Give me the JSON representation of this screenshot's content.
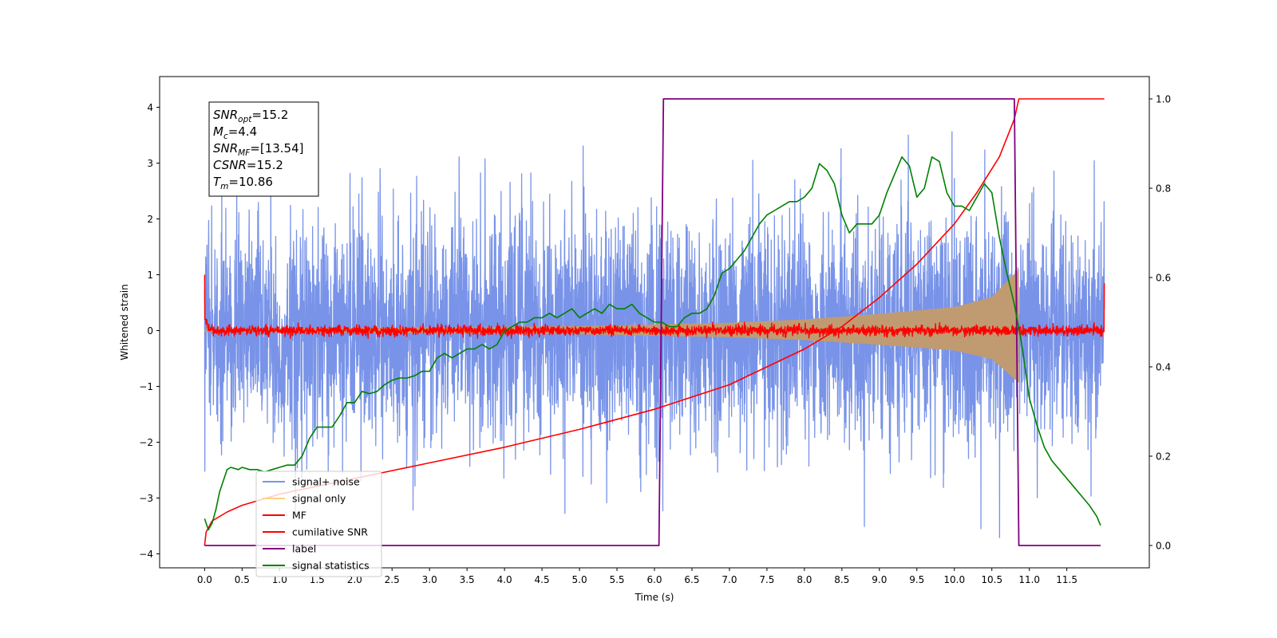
{
  "chart_data": {
    "type": "line",
    "title": "",
    "xlabel": "Time (s)",
    "ylabel": "Whitened strain",
    "ylabel_right": "",
    "xlim": [
      -0.6,
      12.6
    ],
    "ylim": [
      -4.25,
      4.55
    ],
    "ylim_right": [
      -0.05,
      1.05
    ],
    "x_ticks": [
      "0.0",
      "0.5",
      "1.0",
      "1.5",
      "2.0",
      "2.5",
      "3.0",
      "3.5",
      "4.0",
      "4.5",
      "5.0",
      "5.5",
      "6.0",
      "6.5",
      "7.0",
      "7.5",
      "8.0",
      "8.5",
      "9.0",
      "9.5",
      "10.0",
      "10.5",
      "11.0",
      "11.5"
    ],
    "y_ticks": [
      "4",
      "3",
      "2",
      "1",
      "0",
      "−1",
      "−2",
      "−3",
      "−4"
    ],
    "y_ticks_right": [
      "1.0",
      "0.8",
      "0.6",
      "0.4",
      "0.2",
      "0.0"
    ],
    "grid": false,
    "legend_position": "lower-left",
    "annotation": {
      "snr_opt": {
        "base": "SNR",
        "sub": "opt",
        "value": "=15.2"
      },
      "mc": {
        "base": "M",
        "sub": "c",
        "value": "=4.4"
      },
      "snr_mf": {
        "base": "SNR",
        "sub": "MF",
        "value": "=[13.54]"
      },
      "csnr": {
        "base": "CSNR",
        "value": "=15.2"
      },
      "tm": {
        "base": "T",
        "sub": "m",
        "value": "=10.86"
      }
    },
    "series": [
      {
        "name": "signal+ noise",
        "color": "#7893e8",
        "axis": "left",
        "x_range": [
          0.0,
          12.0
        ],
        "approx_envelope": [
          -3.8,
          4.2
        ]
      },
      {
        "name": "signal only",
        "color": "#ffd280",
        "fill_color": "#c09b72",
        "axis": "left",
        "x_range": [
          0.0,
          10.86
        ],
        "amplitude": {
          "x": [
            0.0,
            5.0,
            7.0,
            8.0,
            9.0,
            10.0,
            10.5,
            10.86
          ],
          "y": [
            0.03,
            0.08,
            0.14,
            0.2,
            0.3,
            0.42,
            0.6,
            1.1
          ]
        }
      },
      {
        "name": "MF",
        "color": "#ff0000",
        "axis": "left",
        "x_range": [
          0.0,
          12.0
        ],
        "approx_envelope": [
          -0.1,
          0.2
        ],
        "edge_values": {
          "start": 1.0,
          "end": 0.85
        }
      },
      {
        "name": "cumilative SNR",
        "color": "#ff0000",
        "axis": "right",
        "x": [
          0.0,
          0.02,
          0.1,
          0.3,
          0.5,
          1.0,
          2.0,
          3.0,
          4.0,
          5.0,
          6.0,
          7.0,
          8.0,
          8.5,
          9.0,
          9.5,
          10.0,
          10.3,
          10.6,
          10.8,
          10.86,
          12.0
        ],
        "y": [
          0.0,
          0.03,
          0.055,
          0.075,
          0.09,
          0.115,
          0.15,
          0.185,
          0.22,
          0.26,
          0.305,
          0.36,
          0.44,
          0.49,
          0.555,
          0.63,
          0.72,
          0.79,
          0.87,
          0.955,
          1.0,
          1.0
        ]
      },
      {
        "name": "label",
        "color": "#800080",
        "axis": "right",
        "x": [
          0.0,
          6.06,
          6.12,
          10.8,
          10.86,
          11.95
        ],
        "y": [
          0.0,
          0.0,
          1.0,
          1.0,
          0.0,
          0.0
        ]
      },
      {
        "name": "signal statistics",
        "color": "#008000",
        "axis": "right",
        "x": [
          0.0,
          0.05,
          0.1,
          0.15,
          0.2,
          0.3,
          0.35,
          0.45,
          0.5,
          0.6,
          0.7,
          0.8,
          0.9,
          1.0,
          1.1,
          1.2,
          1.3,
          1.4,
          1.5,
          1.6,
          1.7,
          1.8,
          1.9,
          2.0,
          2.1,
          2.2,
          2.3,
          2.4,
          2.5,
          2.6,
          2.7,
          2.8,
          2.9,
          3.0,
          3.1,
          3.2,
          3.3,
          3.4,
          3.5,
          3.6,
          3.7,
          3.8,
          3.9,
          4.0,
          4.1,
          4.2,
          4.3,
          4.4,
          4.5,
          4.6,
          4.7,
          4.8,
          4.9,
          5.0,
          5.1,
          5.2,
          5.3,
          5.4,
          5.5,
          5.6,
          5.7,
          5.8,
          5.9,
          6.0,
          6.1,
          6.2,
          6.3,
          6.4,
          6.5,
          6.6,
          6.7,
          6.8,
          6.9,
          7.0,
          7.1,
          7.2,
          7.3,
          7.4,
          7.5,
          7.6,
          7.7,
          7.8,
          7.9,
          8.0,
          8.1,
          8.2,
          8.3,
          8.4,
          8.5,
          8.6,
          8.7,
          8.8,
          8.9,
          9.0,
          9.1,
          9.2,
          9.3,
          9.4,
          9.5,
          9.6,
          9.7,
          9.8,
          9.9,
          10.0,
          10.1,
          10.2,
          10.3,
          10.4,
          10.5,
          10.6,
          10.7,
          10.8,
          10.9,
          11.0,
          11.1,
          11.2,
          11.3,
          11.4,
          11.5,
          11.6,
          11.7,
          11.8,
          11.9,
          11.95
        ],
        "y": [
          0.06,
          0.035,
          0.05,
          0.08,
          0.12,
          0.17,
          0.175,
          0.17,
          0.175,
          0.17,
          0.17,
          0.165,
          0.17,
          0.175,
          0.18,
          0.18,
          0.2,
          0.24,
          0.265,
          0.265,
          0.265,
          0.29,
          0.32,
          0.32,
          0.345,
          0.34,
          0.345,
          0.36,
          0.37,
          0.375,
          0.375,
          0.38,
          0.39,
          0.39,
          0.42,
          0.43,
          0.42,
          0.43,
          0.44,
          0.44,
          0.45,
          0.44,
          0.45,
          0.48,
          0.49,
          0.5,
          0.5,
          0.51,
          0.51,
          0.52,
          0.51,
          0.52,
          0.53,
          0.51,
          0.52,
          0.53,
          0.52,
          0.54,
          0.53,
          0.53,
          0.54,
          0.52,
          0.51,
          0.5,
          0.5,
          0.49,
          0.49,
          0.51,
          0.52,
          0.52,
          0.53,
          0.56,
          0.61,
          0.62,
          0.64,
          0.66,
          0.69,
          0.72,
          0.74,
          0.75,
          0.76,
          0.77,
          0.77,
          0.78,
          0.8,
          0.855,
          0.84,
          0.81,
          0.74,
          0.7,
          0.72,
          0.72,
          0.72,
          0.74,
          0.79,
          0.83,
          0.87,
          0.85,
          0.78,
          0.8,
          0.87,
          0.86,
          0.79,
          0.76,
          0.76,
          0.75,
          0.78,
          0.81,
          0.79,
          0.69,
          0.61,
          0.54,
          0.45,
          0.33,
          0.27,
          0.22,
          0.19,
          0.17,
          0.15,
          0.13,
          0.11,
          0.09,
          0.065,
          0.045
        ]
      }
    ]
  }
}
